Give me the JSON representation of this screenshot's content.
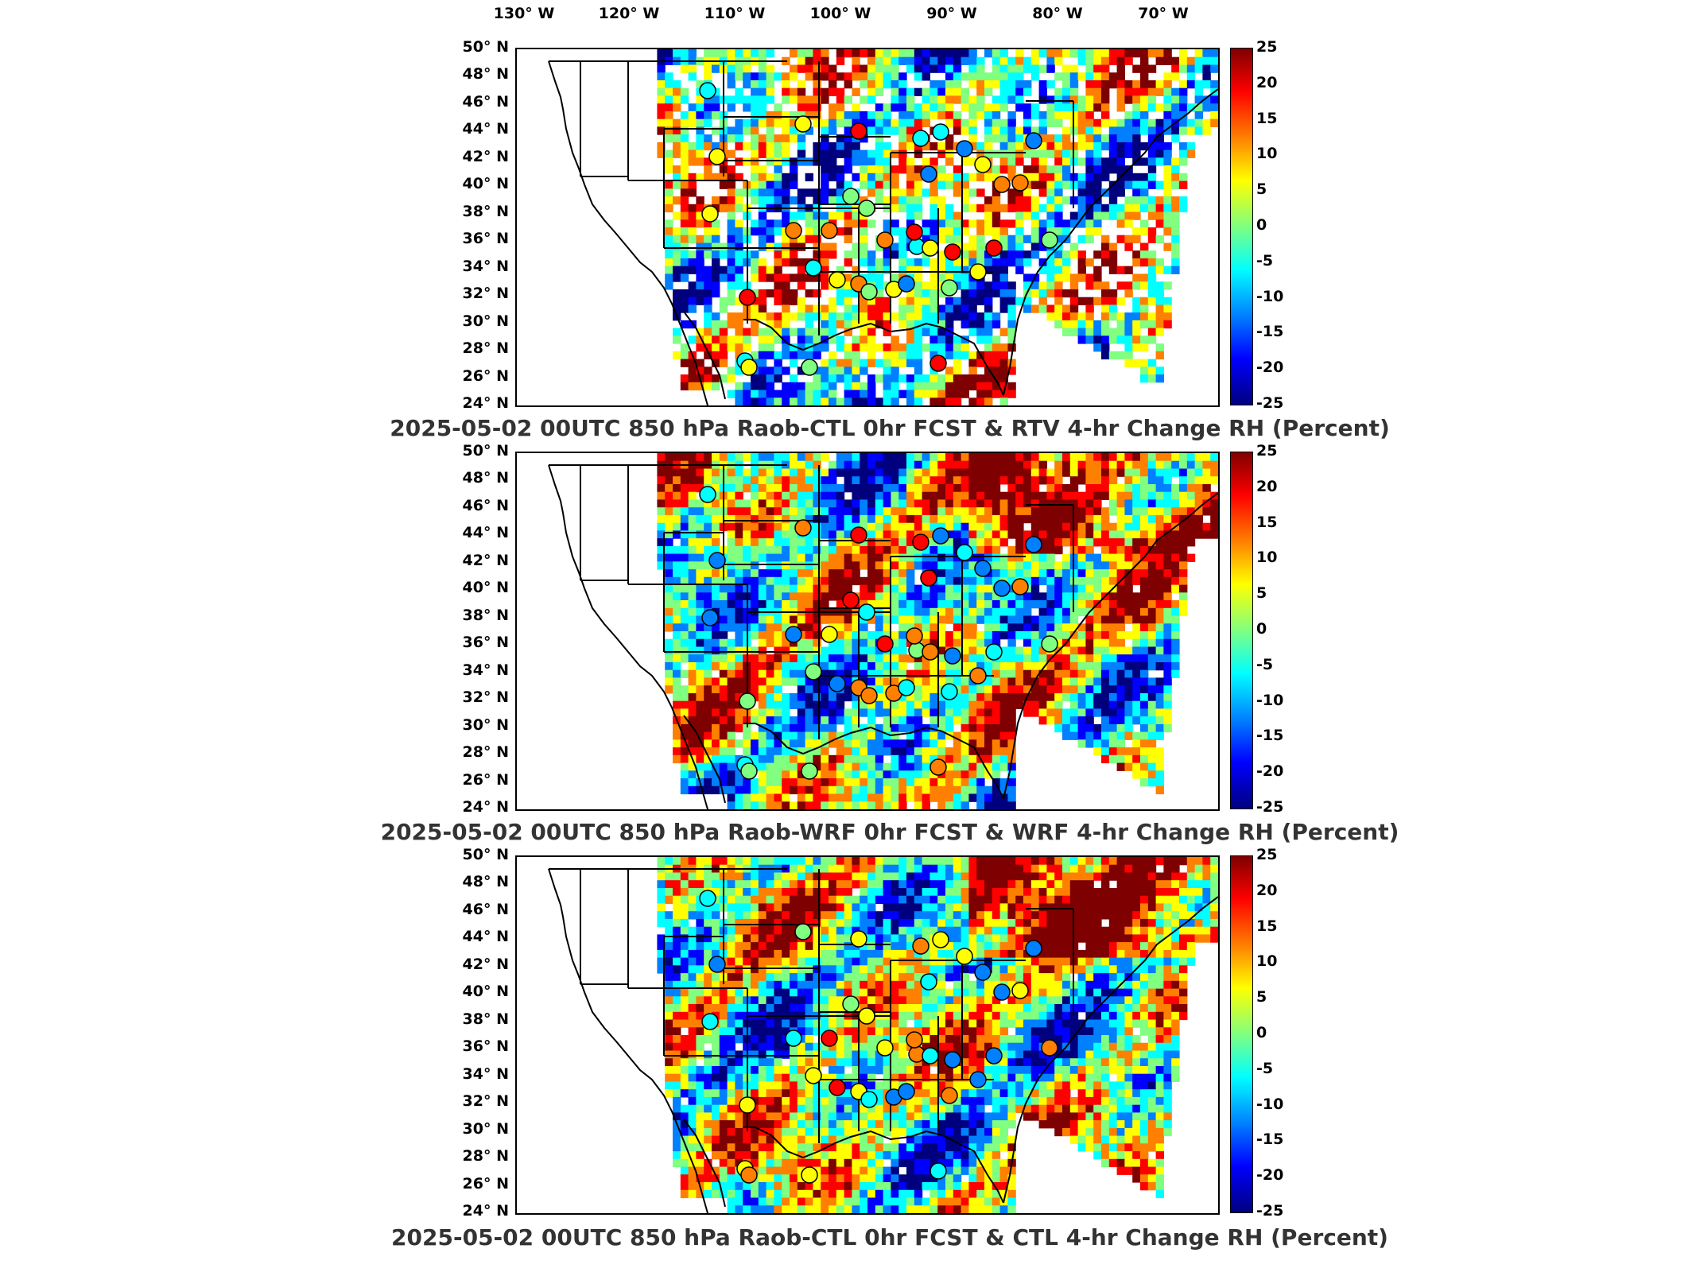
{
  "longitude_labels": [
    "130° W",
    "120° W",
    "110° W",
    "100° W",
    "90° W",
    "80° W",
    "70° W"
  ],
  "latitude_labels": [
    "50° N",
    "48° N",
    "46° N",
    "44° N",
    "42° N",
    "40° N",
    "38° N",
    "36° N",
    "34° N",
    "32° N",
    "30° N",
    "28° N",
    "26° N",
    "24° N"
  ],
  "colorbar": {
    "ticks": [
      "25",
      "20",
      "15",
      "10",
      "5",
      "0",
      "-5",
      "-10",
      "-15",
      "-20",
      "-25"
    ],
    "range": [
      -25,
      25
    ],
    "colormap": "jet",
    "colors": [
      "#7f0000",
      "#ff0000",
      "#ff8000",
      "#ffff00",
      "#80ff80",
      "#00ffff",
      "#0080ff",
      "#0000ff",
      "#00007f"
    ]
  },
  "panels": [
    {
      "title": "2025-05-02 00UTC 850 hPa Raob-CTL 0hr FCST & RTV 4-hr Change RH (Percent)",
      "field": "rtv"
    },
    {
      "title": "2025-05-02 00UTC 850 hPa Raob-WRF 0hr FCST & WRF 4-hr Change RH (Percent)",
      "field": "wrf"
    },
    {
      "title": "2025-05-02 00UTC 850 hPa Raob-CTL 0hr FCST & CTL 4-hr Change RH (Percent)",
      "field": "ctl"
    }
  ]
}
